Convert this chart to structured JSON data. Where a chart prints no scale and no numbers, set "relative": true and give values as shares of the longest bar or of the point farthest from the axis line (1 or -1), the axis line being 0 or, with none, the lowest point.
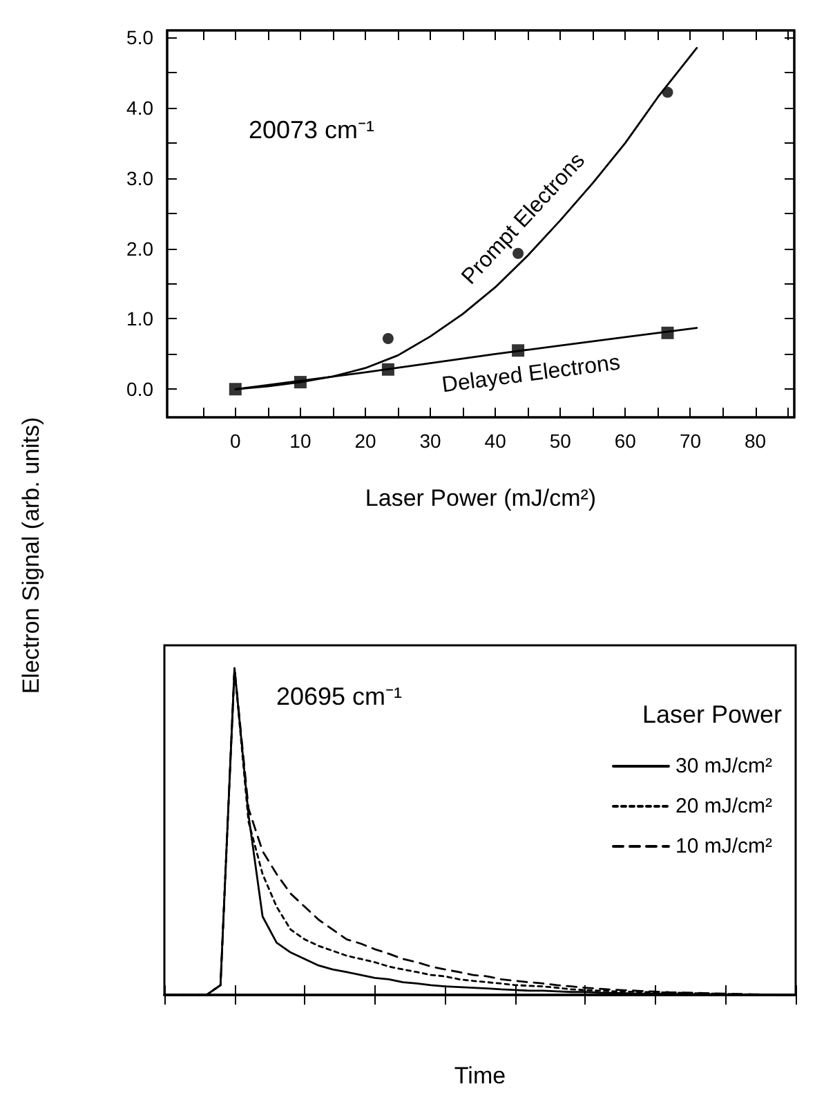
{
  "chart_data": [
    {
      "type": "scatter",
      "ylabel": "Electron Signal (arb. units)",
      "xlabel": "Laser Power (mJ/cm²)",
      "annotations": [
        "20073 cm⁻¹"
      ],
      "xlim": [
        -10.5,
        86
      ],
      "ylim": [
        -0.4,
        5.1
      ],
      "xticks": [
        {
          "value": -5,
          "label": null
        },
        0,
        {
          "value": 5,
          "label": null
        },
        10,
        {
          "value": 15,
          "label": null
        },
        20,
        {
          "value": 25,
          "label": null
        },
        30,
        {
          "value": 35,
          "label": null
        },
        40,
        {
          "value": 45,
          "label": null
        },
        50,
        {
          "value": 55,
          "label": null
        },
        60,
        {
          "value": 65,
          "label": null
        },
        70,
        {
          "value": 75,
          "label": null
        },
        80,
        {
          "value": 85,
          "label": null
        }
      ],
      "yticks": [
        {
          "value": 0,
          "label": "0.0"
        },
        {
          "value": 0.5,
          "label": null
        },
        {
          "value": 1,
          "label": "1.0"
        },
        {
          "value": 1.5,
          "label": null
        },
        {
          "value": 2,
          "label": "2.0"
        },
        {
          "value": 2.5,
          "label": null
        },
        {
          "value": 3,
          "label": "3.0"
        },
        {
          "value": 3.5,
          "label": null
        },
        {
          "value": 4,
          "label": "4.0"
        },
        {
          "value": 4.5,
          "label": null
        },
        {
          "value": 5,
          "label": "5.0"
        }
      ],
      "grid": false,
      "legend": false,
      "series": [
        {
          "marker": "circle",
          "color": "#000000",
          "x": [
            23.5,
            43.5,
            66.5
          ],
          "values": [
            0.72,
            1.93,
            4.22
          ]
        },
        {
          "marker": "square",
          "color": "#000000",
          "x": [
            0,
            10,
            23.5,
            43.5,
            66.5
          ],
          "values": [
            0,
            0.1,
            0.28,
            0.55,
            0.8
          ]
        },
        {
          "type": "line",
          "name": "Prompt Electrons",
          "color": "#000000",
          "marker": "none",
          "x": [
            0,
            5,
            10,
            15,
            20,
            25,
            30,
            35,
            40,
            45,
            50,
            55,
            60,
            65,
            71
          ],
          "values": [
            0,
            0.04,
            0.1,
            0.18,
            0.3,
            0.48,
            0.75,
            1.07,
            1.45,
            1.9,
            2.4,
            2.93,
            3.5,
            4.15,
            4.85
          ]
        },
        {
          "type": "line",
          "name": "Delayed Electrons",
          "color": "#000000",
          "marker": "none",
          "x": [
            0,
            10,
            20,
            30,
            40,
            50,
            60,
            71
          ],
          "values": [
            0,
            0.12,
            0.24,
            0.37,
            0.5,
            0.62,
            0.74,
            0.87
          ]
        }
      ]
    },
    {
      "type": "line",
      "relative": true,
      "xlabel": "Time",
      "annotations": [
        "20695 cm⁻¹"
      ],
      "legend_title": "Laser Power",
      "legend": "right",
      "grid": false,
      "marker": "none",
      "categories": [
        null,
        null,
        null,
        null,
        null,
        null,
        null,
        null,
        null,
        null,
        null,
        null,
        null,
        null,
        null,
        null,
        null,
        null,
        null,
        null,
        null,
        null,
        null,
        null,
        null,
        null,
        null,
        null,
        null,
        null,
        null,
        null,
        null,
        null,
        null,
        null,
        null,
        null,
        null,
        null,
        null,
        null,
        null,
        null,
        null,
        null
      ],
      "series": [
        {
          "name": "30 mJ/cm²",
          "color": "#000000",
          "line_style": "solid",
          "values": [
            0,
            0,
            0,
            0,
            0.03,
            1.0,
            0.55,
            0.24,
            0.16,
            0.13,
            0.11,
            0.09,
            0.078,
            0.07,
            0.061,
            0.052,
            0.048,
            0.039,
            0.035,
            0.03,
            0.026,
            0.024,
            0.022,
            0.02,
            0.017,
            0.015,
            0.013,
            0.013,
            0.011,
            0.009,
            0.009,
            0.007,
            0.006,
            0.005,
            0.004,
            0.004,
            0.003,
            0.003,
            0.002,
            0.002,
            0.001,
            0.001,
            0,
            0,
            0,
            0
          ]
        },
        {
          "name": "20 mJ/cm²",
          "color": "#000000",
          "line_style": "dotted",
          "values": [
            0,
            0,
            0,
            0,
            0.03,
            1.0,
            0.53,
            0.37,
            0.27,
            0.2,
            0.17,
            0.15,
            0.135,
            0.12,
            0.11,
            0.1,
            0.087,
            0.078,
            0.07,
            0.061,
            0.057,
            0.048,
            0.043,
            0.039,
            0.035,
            0.03,
            0.028,
            0.026,
            0.022,
            0.017,
            0.015,
            0.013,
            0.011,
            0.01,
            0.009,
            0.008,
            0.007,
            0.006,
            0.005,
            0.004,
            0.003,
            0.002,
            0.001,
            0.001,
            0,
            0
          ]
        },
        {
          "name": "10 mJ/cm²",
          "color": "#000000",
          "line_style": "dashed",
          "values": [
            0,
            0,
            0,
            0,
            0.03,
            1.0,
            0.57,
            0.44,
            0.37,
            0.31,
            0.27,
            0.23,
            0.2,
            0.17,
            0.157,
            0.14,
            0.126,
            0.11,
            0.1,
            0.087,
            0.078,
            0.07,
            0.061,
            0.057,
            0.048,
            0.043,
            0.039,
            0.035,
            0.03,
            0.026,
            0.022,
            0.019,
            0.016,
            0.014,
            0.012,
            0.01,
            0.008,
            0.007,
            0.006,
            0.005,
            0.004,
            0.003,
            0.002,
            0.001,
            0,
            0
          ]
        }
      ]
    }
  ]
}
